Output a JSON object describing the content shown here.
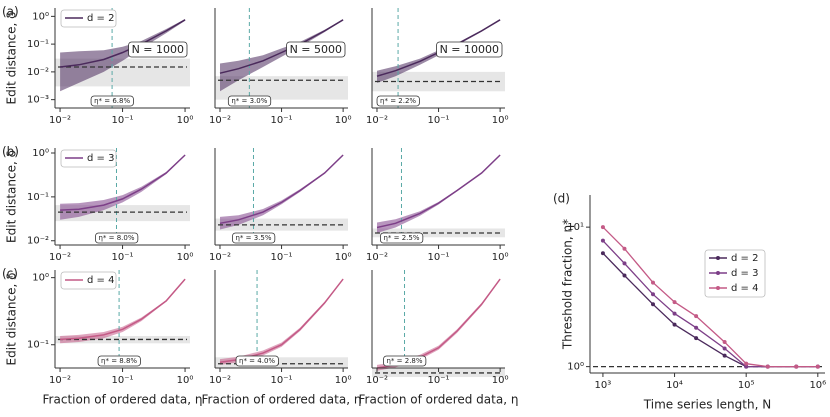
{
  "chart_data": [
    {
      "type": "line",
      "panel_label": "(a)",
      "ylabel": "Edit distance, δ",
      "annotation": "N = 1000",
      "threshold": 0.068,
      "threshold_label": "η* = 6.8%",
      "baseline": 0.015,
      "baseline_band": [
        0.003,
        0.03
      ],
      "x": [
        0.01,
        0.02,
        0.05,
        0.1,
        0.2,
        0.5,
        1
      ],
      "series": [
        {
          "name": "d = 2",
          "color": "#4b2a5c",
          "values": [
            0.015,
            0.018,
            0.028,
            0.05,
            0.1,
            0.3,
            0.75
          ],
          "lower": [
            0.002,
            0.004,
            0.01,
            0.025,
            0.07,
            0.25,
            0.7
          ],
          "upper": [
            0.05,
            0.055,
            0.06,
            0.08,
            0.13,
            0.35,
            0.8
          ]
        }
      ],
      "xlim": [
        0.0083,
        1.2
      ],
      "ylim": [
        0.0005,
        2
      ],
      "xticks": [
        {
          "value": 0.01,
          "label": "10⁻²"
        },
        {
          "value": 0.1,
          "label": "10⁻¹"
        },
        {
          "value": 1,
          "label": "10⁰"
        }
      ],
      "yticks": [
        {
          "value": 0.001,
          "label": "10⁻³"
        },
        {
          "value": 0.01,
          "label": "10⁻²"
        },
        {
          "value": 0.1,
          "label": "10⁻¹"
        },
        {
          "value": 1,
          "label": "10⁰"
        }
      ],
      "log": true
    },
    {
      "type": "line",
      "annotation": "N = 5000",
      "threshold": 0.03,
      "threshold_label": "η* = 3.0%",
      "baseline": 0.005,
      "baseline_band": [
        0.001,
        0.007
      ],
      "x": [
        0.01,
        0.02,
        0.05,
        0.1,
        0.2,
        0.5,
        1
      ],
      "series": [
        {
          "color": "#4b2a5c",
          "values": [
            0.009,
            0.013,
            0.025,
            0.05,
            0.1,
            0.3,
            0.75
          ],
          "lower": [
            0.002,
            0.005,
            0.015,
            0.035,
            0.08,
            0.27,
            0.72
          ],
          "upper": [
            0.02,
            0.025,
            0.04,
            0.07,
            0.12,
            0.33,
            0.78
          ]
        }
      ],
      "xlim": [
        0.0083,
        1.2
      ],
      "ylim": [
        0.0005,
        2
      ],
      "xticks": [
        {
          "value": 0.01,
          "label": "10⁻²"
        },
        {
          "value": 0.1,
          "label": "10⁻¹"
        },
        {
          "value": 1,
          "label": "10⁰"
        }
      ],
      "log": true
    },
    {
      "type": "line",
      "annotation": "N = 10000",
      "threshold": 0.022,
      "threshold_label": "η* = 2.2%",
      "baseline": 0.0045,
      "baseline_band": [
        0.002,
        0.01
      ],
      "x": [
        0.01,
        0.02,
        0.05,
        0.1,
        0.2,
        0.5,
        1
      ],
      "series": [
        {
          "color": "#4b2a5c",
          "values": [
            0.007,
            0.011,
            0.024,
            0.05,
            0.1,
            0.3,
            0.75
          ],
          "lower": [
            0.004,
            0.007,
            0.018,
            0.04,
            0.09,
            0.28,
            0.73
          ],
          "upper": [
            0.011,
            0.016,
            0.03,
            0.06,
            0.11,
            0.32,
            0.77
          ]
        }
      ],
      "xlim": [
        0.0083,
        1.2
      ],
      "ylim": [
        0.0005,
        2
      ],
      "xticks": [
        {
          "value": 0.01,
          "label": "10⁻²"
        },
        {
          "value": 0.1,
          "label": "10⁻¹"
        },
        {
          "value": 1,
          "label": "10⁰"
        }
      ],
      "log": true
    },
    {
      "type": "line",
      "panel_label": "(b)",
      "ylabel": "Edit distance, δ",
      "threshold": 0.08,
      "threshold_label": "η* = 8.0%",
      "baseline": 0.045,
      "baseline_band": [
        0.028,
        0.065
      ],
      "x": [
        0.01,
        0.02,
        0.05,
        0.1,
        0.2,
        0.5,
        1
      ],
      "series": [
        {
          "name": "d = 3",
          "color": "#7d3f88",
          "values": [
            0.05,
            0.052,
            0.065,
            0.09,
            0.15,
            0.35,
            0.9
          ],
          "lower": [
            0.03,
            0.035,
            0.05,
            0.075,
            0.13,
            0.33,
            0.88
          ],
          "upper": [
            0.07,
            0.072,
            0.085,
            0.11,
            0.17,
            0.37,
            0.92
          ]
        }
      ],
      "xlim": [
        0.0083,
        1.2
      ],
      "ylim": [
        0.008,
        1.3
      ],
      "xticks": [
        {
          "value": 0.01,
          "label": "10⁻²"
        },
        {
          "value": 0.1,
          "label": "10⁻¹"
        },
        {
          "value": 1,
          "label": "10⁰"
        }
      ],
      "yticks": [
        {
          "value": 0.01,
          "label": "10⁻²"
        },
        {
          "value": 0.1,
          "label": "10⁻¹"
        },
        {
          "value": 1,
          "label": "10⁰"
        }
      ],
      "log": true
    },
    {
      "type": "line",
      "threshold": 0.035,
      "threshold_label": "η* = 3.5%",
      "baseline": 0.023,
      "baseline_band": [
        0.017,
        0.032
      ],
      "x": [
        0.01,
        0.02,
        0.05,
        0.1,
        0.2,
        0.5,
        1
      ],
      "series": [
        {
          "color": "#7d3f88",
          "values": [
            0.025,
            0.03,
            0.045,
            0.075,
            0.14,
            0.35,
            0.9
          ],
          "lower": [
            0.018,
            0.023,
            0.038,
            0.068,
            0.13,
            0.34,
            0.89
          ],
          "upper": [
            0.035,
            0.038,
            0.053,
            0.083,
            0.15,
            0.36,
            0.91
          ]
        }
      ],
      "xlim": [
        0.0083,
        1.2
      ],
      "ylim": [
        0.008,
        1.3
      ],
      "xticks": [
        {
          "value": 0.01,
          "label": "10⁻²"
        },
        {
          "value": 0.1,
          "label": "10⁻¹"
        },
        {
          "value": 1,
          "label": "10⁰"
        }
      ],
      "log": true
    },
    {
      "type": "line",
      "threshold": 0.025,
      "threshold_label": "η* = 2.5%",
      "baseline": 0.015,
      "baseline_band": [
        0.012,
        0.019
      ],
      "x": [
        0.01,
        0.02,
        0.05,
        0.1,
        0.2,
        0.5,
        1
      ],
      "series": [
        {
          "color": "#7d3f88",
          "values": [
            0.02,
            0.025,
            0.042,
            0.072,
            0.14,
            0.35,
            0.9
          ],
          "lower": [
            0.015,
            0.02,
            0.037,
            0.067,
            0.135,
            0.345,
            0.895
          ],
          "upper": [
            0.026,
            0.031,
            0.047,
            0.077,
            0.145,
            0.355,
            0.905
          ]
        }
      ],
      "xlim": [
        0.0083,
        1.2
      ],
      "ylim": [
        0.008,
        1.3
      ],
      "xticks": [
        {
          "value": 0.01,
          "label": "10⁻²"
        },
        {
          "value": 0.1,
          "label": "10⁻¹"
        },
        {
          "value": 1,
          "label": "10⁰"
        }
      ],
      "log": true
    },
    {
      "type": "line",
      "panel_label": "(c)",
      "ylabel": "Edit distance, δ",
      "xlabel": "Fraction of ordered data, η",
      "threshold": 0.088,
      "threshold_label": "η* = 8.8%",
      "baseline": 0.12,
      "baseline_band": [
        0.105,
        0.135
      ],
      "x": [
        0.01,
        0.02,
        0.05,
        0.1,
        0.2,
        0.5,
        1
      ],
      "series": [
        {
          "name": "d = 4",
          "color": "#c45a86",
          "values": [
            0.12,
            0.125,
            0.14,
            0.17,
            0.24,
            0.45,
            0.95
          ],
          "lower": [
            0.105,
            0.11,
            0.125,
            0.155,
            0.225,
            0.44,
            0.94
          ],
          "upper": [
            0.135,
            0.14,
            0.155,
            0.185,
            0.255,
            0.46,
            0.96
          ]
        }
      ],
      "xlim": [
        0.0083,
        1.2
      ],
      "ylim": [
        0.045,
        1.3
      ],
      "xticks": [
        {
          "value": 0.01,
          "label": "10⁻²"
        },
        {
          "value": 0.1,
          "label": "10⁻¹"
        },
        {
          "value": 1,
          "label": "10⁰"
        }
      ],
      "yticks": [
        {
          "value": 0.1,
          "label": "10⁻¹"
        },
        {
          "value": 1,
          "label": "10⁰"
        }
      ],
      "log": true
    },
    {
      "type": "line",
      "xlabel": "Fraction of ordered data, η",
      "threshold": 0.04,
      "threshold_label": "η* = 4.0%",
      "baseline": 0.052,
      "baseline_band": [
        0.045,
        0.065
      ],
      "x": [
        0.01,
        0.02,
        0.05,
        0.1,
        0.2,
        0.5,
        1
      ],
      "series": [
        {
          "color": "#c45a86",
          "values": [
            0.055,
            0.06,
            0.075,
            0.1,
            0.17,
            0.42,
            0.95
          ],
          "lower": [
            0.05,
            0.055,
            0.069,
            0.093,
            0.16,
            0.4,
            0.93
          ],
          "upper": [
            0.061,
            0.066,
            0.082,
            0.108,
            0.18,
            0.44,
            0.97
          ]
        }
      ],
      "xlim": [
        0.0083,
        1.2
      ],
      "ylim": [
        0.045,
        1.3
      ],
      "xticks": [
        {
          "value": 0.01,
          "label": "10⁻²"
        },
        {
          "value": 0.1,
          "label": "10⁻¹"
        },
        {
          "value": 1,
          "label": "10⁰"
        }
      ],
      "log": true
    },
    {
      "type": "line",
      "xlabel": "Fraction of ordered data, η",
      "threshold": 0.028,
      "threshold_label": "η* = 2.8%",
      "baseline": 0.038,
      "baseline_band": [
        0.033,
        0.045
      ],
      "x": [
        0.01,
        0.02,
        0.05,
        0.1,
        0.2,
        0.5,
        1
      ],
      "series": [
        {
          "color": "#c45a86",
          "values": [
            0.045,
            0.05,
            0.065,
            0.09,
            0.16,
            0.4,
            0.95
          ],
          "lower": [
            0.041,
            0.046,
            0.06,
            0.084,
            0.15,
            0.38,
            0.93
          ],
          "upper": [
            0.05,
            0.055,
            0.071,
            0.097,
            0.17,
            0.42,
            0.97
          ]
        }
      ],
      "xlim": [
        0.0083,
        1.2
      ],
      "ylim": [
        0.045,
        1.3
      ],
      "xticks": [
        {
          "value": 0.01,
          "label": "10⁻²"
        },
        {
          "value": 0.1,
          "label": "10⁻¹"
        },
        {
          "value": 1,
          "label": "10⁰"
        }
      ],
      "log": true
    },
    {
      "type": "scatterline",
      "panel_label": "(d)",
      "ylabel": "Threshold fraction, η*",
      "xlabel": "Time series length, N",
      "baseline": 1,
      "legend": "center right",
      "x": [
        1000,
        2000,
        5000,
        10000,
        20000,
        50000,
        100000,
        200000,
        500000,
        1000000
      ],
      "series": [
        {
          "name": "d = 2",
          "color": "#4b2a5c",
          "values": [
            6.5,
            4.5,
            2.8,
            2.0,
            1.6,
            1.2,
            1.0,
            1.0,
            1.0,
            1.0
          ]
        },
        {
          "name": "d = 3",
          "color": "#7d3f88",
          "values": [
            8,
            5.5,
            3.3,
            2.4,
            1.9,
            1.35,
            1.0,
            1.0,
            1.0,
            1.0
          ]
        },
        {
          "name": "d = 4",
          "color": "#c45a86",
          "values": [
            10,
            7,
            4,
            2.9,
            2.3,
            1.5,
            1.05,
            1.0,
            1.0,
            1.0
          ]
        }
      ],
      "xlim": [
        660,
        1260000
      ],
      "ylim": [
        0.9,
        17
      ],
      "xticks": [
        {
          "value": 1000,
          "label": "10³"
        },
        {
          "value": 10000,
          "label": "10⁴"
        },
        {
          "value": 100000,
          "label": "10⁵"
        },
        {
          "value": 1000000,
          "label": "10⁶"
        }
      ],
      "yticks": [
        {
          "value": 1,
          "label": "10⁰"
        },
        {
          "value": 10,
          "label": "10¹"
        }
      ],
      "log": true
    }
  ]
}
